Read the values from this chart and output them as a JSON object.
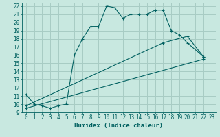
{
  "title": "",
  "xlabel": "Humidex (Indice chaleur)",
  "bg_color": "#c8e8e0",
  "grid_color": "#a8ccc4",
  "line_color": "#006060",
  "xlim": [
    -0.5,
    23.5
  ],
  "ylim": [
    9,
    22.4
  ],
  "xticks": [
    0,
    1,
    2,
    3,
    4,
    5,
    6,
    7,
    8,
    9,
    10,
    11,
    12,
    13,
    14,
    15,
    16,
    17,
    18,
    19,
    20,
    21,
    22,
    23
  ],
  "yticks": [
    9,
    10,
    11,
    12,
    13,
    14,
    15,
    16,
    17,
    18,
    19,
    20,
    21,
    22
  ],
  "line1_x": [
    0,
    1,
    2,
    3,
    4,
    5,
    6,
    7,
    8,
    9,
    10,
    11,
    12,
    13,
    14,
    15,
    16,
    17,
    18,
    19,
    20,
    22
  ],
  "line1_y": [
    11.2,
    10.0,
    9.8,
    9.5,
    9.8,
    10.0,
    16.0,
    18.0,
    19.5,
    19.5,
    22.0,
    21.8,
    20.5,
    21.0,
    21.0,
    21.0,
    21.5,
    21.5,
    19.0,
    18.5,
    17.5,
    15.8
  ],
  "line2_x": [
    0,
    22
  ],
  "line2_y": [
    9.5,
    15.5
  ],
  "line3_x": [
    0,
    17,
    20,
    22
  ],
  "line3_y": [
    9.8,
    17.5,
    18.3,
    15.8
  ],
  "figsize": [
    3.2,
    2.0
  ],
  "dpi": 100
}
